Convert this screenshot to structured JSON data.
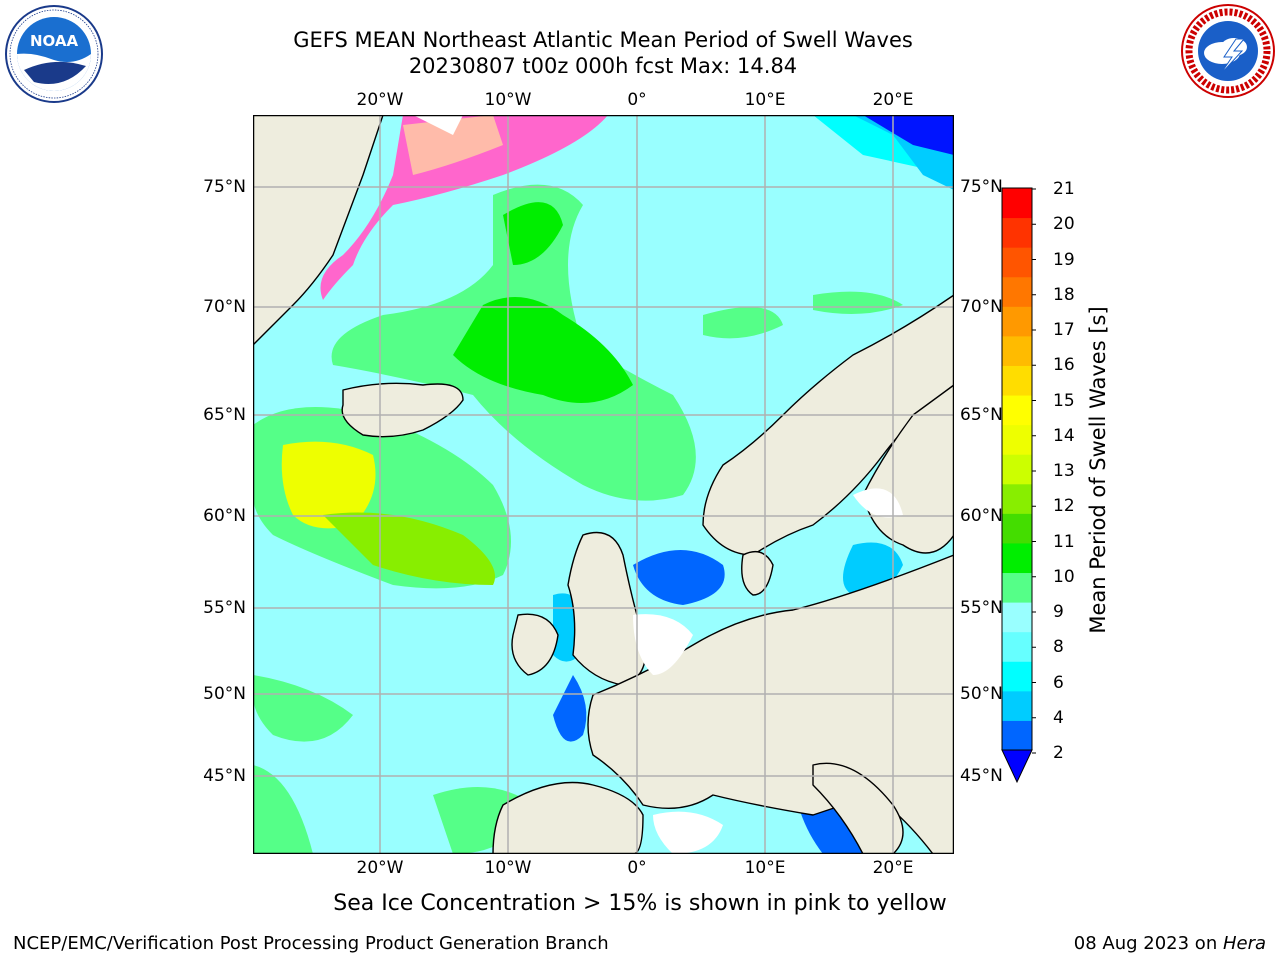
{
  "header": {
    "title": "GEFS MEAN Northeast Atlantic Mean Period of Swell Waves",
    "subtitle": "20230807 t00z 000h fcst   Max: 14.84"
  },
  "logos": {
    "left": {
      "name": "noaa-logo",
      "text": "NOAA",
      "ring_text": "NATIONAL OCEANIC AND ATMOSPHERIC ADMINISTRATION · U.S. DEPARTMENT OF COMMERCE"
    },
    "right": {
      "name": "national-weather-service-logo",
      "ring_text": "NATIONAL WEATHER SERVICE"
    }
  },
  "map": {
    "longitude_labels": [
      "20°W",
      "10°W",
      "0°",
      "10°E",
      "20°E"
    ],
    "latitude_labels": [
      "75°N",
      "70°N",
      "65°N",
      "60°N",
      "55°N",
      "50°N",
      "45°N"
    ],
    "colors": {
      "land": "#eeedde",
      "ocean_base": "#99ffff",
      "grid": "#b0b0b0",
      "coastline": "#000000"
    }
  },
  "colorbar": {
    "label": "Mean Period of Swell Waves [s]",
    "ticks": [
      "21",
      "20",
      "19",
      "18",
      "17",
      "16",
      "15",
      "14",
      "13",
      "12",
      "11",
      "10",
      "9",
      "8",
      "6",
      "4",
      "2"
    ],
    "colors_bottom_to_top": [
      "#0066ff",
      "#00ccff",
      "#00ffff",
      "#66ffff",
      "#99ffff",
      "#55ff88",
      "#00ee00",
      "#44dd00",
      "#88ee00",
      "#ccff00",
      "#eeff00",
      "#ffff00",
      "#ffdd00",
      "#ffbb00",
      "#ff9900",
      "#ff7700",
      "#ff5500",
      "#ff3300",
      "#ff0000"
    ],
    "extend_below_color": "#0000ff"
  },
  "caption": "Sea Ice Concentration > 15% is shown in pink to yellow",
  "footer": {
    "credit": "NCEP/EMC/Verification Post Processing Product Generation Branch",
    "date": "08 Aug 2023 on ",
    "host": "Hera"
  }
}
